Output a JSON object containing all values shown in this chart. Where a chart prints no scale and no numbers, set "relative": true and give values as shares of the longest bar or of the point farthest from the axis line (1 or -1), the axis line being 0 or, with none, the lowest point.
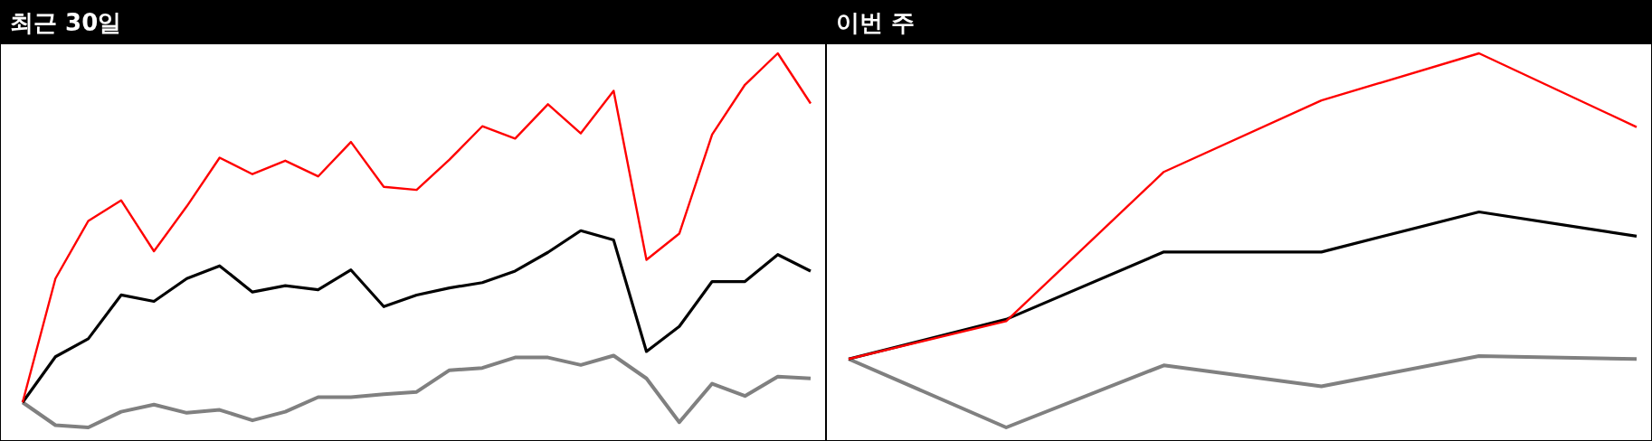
{
  "chart_data": [
    {
      "type": "line",
      "title": "최근 30일",
      "relative": true,
      "categories": [
        null,
        null,
        null,
        null,
        null,
        null,
        null,
        null,
        null,
        null,
        null,
        null,
        null,
        null,
        null,
        null,
        null,
        null,
        null,
        null,
        null,
        null,
        null,
        null,
        null
      ],
      "series": [
        {
          "color": "#808080",
          "values": [
            0.067,
            0.006,
            0,
            0.042,
            0.061,
            0.039,
            0.047,
            0.019,
            0.042,
            0.081,
            0.081,
            0.089,
            0.095,
            0.153,
            0.159,
            0.187,
            0.187,
            0.167,
            0.192,
            0.131,
            0.014,
            0.117,
            0.084,
            0.136,
            0.131
          ]
        },
        {
          "color": "#000000",
          "values": [
            0.067,
            0.189,
            0.237,
            0.354,
            0.337,
            0.398,
            0.432,
            0.362,
            0.379,
            0.368,
            0.421,
            0.323,
            0.354,
            0.373,
            0.387,
            0.418,
            0.468,
            0.526,
            0.501,
            0.203,
            0.27,
            0.39,
            0.39,
            0.462,
            0.418
          ]
        },
        {
          "color": "#ff0000",
          "values": [
            0.067,
            0.398,
            0.552,
            0.607,
            0.471,
            0.591,
            0.721,
            0.677,
            0.713,
            0.671,
            0.763,
            0.643,
            0.635,
            0.716,
            0.805,
            0.772,
            0.864,
            0.786,
            0.9,
            0.448,
            0.518,
            0.783,
            0.916,
            1,
            0.866
          ]
        }
      ]
    },
    {
      "type": "line",
      "title": "이번 주",
      "relative": true,
      "categories": [
        null,
        null,
        null,
        null,
        null,
        null
      ],
      "series": [
        {
          "color": "#808080",
          "values": [
            0.183,
            0,
            0.166,
            0.11,
            0.191,
            0.183
          ]
        },
        {
          "color": "#000000",
          "values": [
            0.183,
            0.289,
            0.469,
            0.469,
            0.576,
            0.511
          ]
        },
        {
          "color": "#ff0000",
          "values": [
            0.183,
            0.284,
            0.683,
            0.874,
            1,
            0.803
          ]
        }
      ]
    }
  ]
}
